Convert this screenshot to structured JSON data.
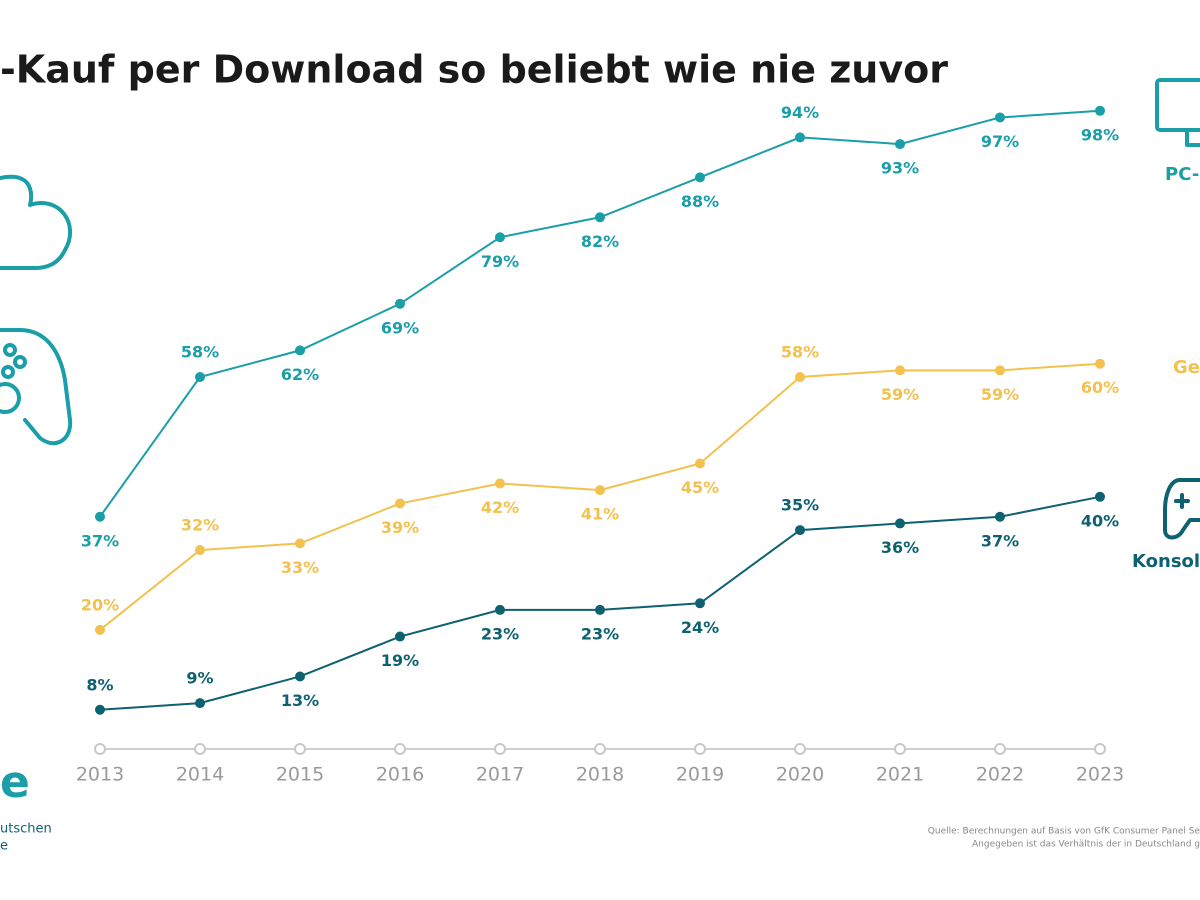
{
  "chart_data": {
    "type": "line",
    "title": "-Kauf per Download so beliebt wie nie zuvor",
    "categories": [
      "2013",
      "2014",
      "2015",
      "2016",
      "2017",
      "2018",
      "2019",
      "2020",
      "2021",
      "2022",
      "2023"
    ],
    "series": [
      {
        "name": "PC-",
        "color": "#1a9ea8",
        "values": [
          37,
          58,
          62,
          69,
          79,
          82,
          88,
          94,
          93,
          97,
          98
        ],
        "value_labels": [
          "37%",
          "58%",
          "62%",
          "69%",
          "79%",
          "82%",
          "88%",
          "94%",
          "93%",
          "97%",
          "98%"
        ]
      },
      {
        "name": "Ge",
        "color": "#f2c14e",
        "values": [
          20,
          32,
          33,
          39,
          42,
          41,
          45,
          58,
          59,
          59,
          60
        ],
        "value_labels": [
          "20%",
          "32%",
          "33%",
          "39%",
          "42%",
          "41%",
          "45%",
          "58%",
          "59%",
          "59%",
          "60%"
        ]
      },
      {
        "name": "Konsol",
        "color": "#0e6170",
        "values": [
          8,
          9,
          13,
          19,
          23,
          23,
          24,
          35,
          36,
          37,
          40
        ],
        "value_labels": [
          "8%",
          "9%",
          "13%",
          "19%",
          "23%",
          "23%",
          "24%",
          "35%",
          "36%",
          "37%",
          "40%"
        ]
      }
    ],
    "ylim": [
      0,
      100
    ],
    "source": [
      "Quelle: Berechnungen auf Basis von GfK Consumer Panel Se",
      "Angegeben ist das Verhältnis der in Deutschland g"
    ],
    "logo": {
      "mark": "e",
      "lines": [
        "utschen",
        "e"
      ]
    }
  }
}
